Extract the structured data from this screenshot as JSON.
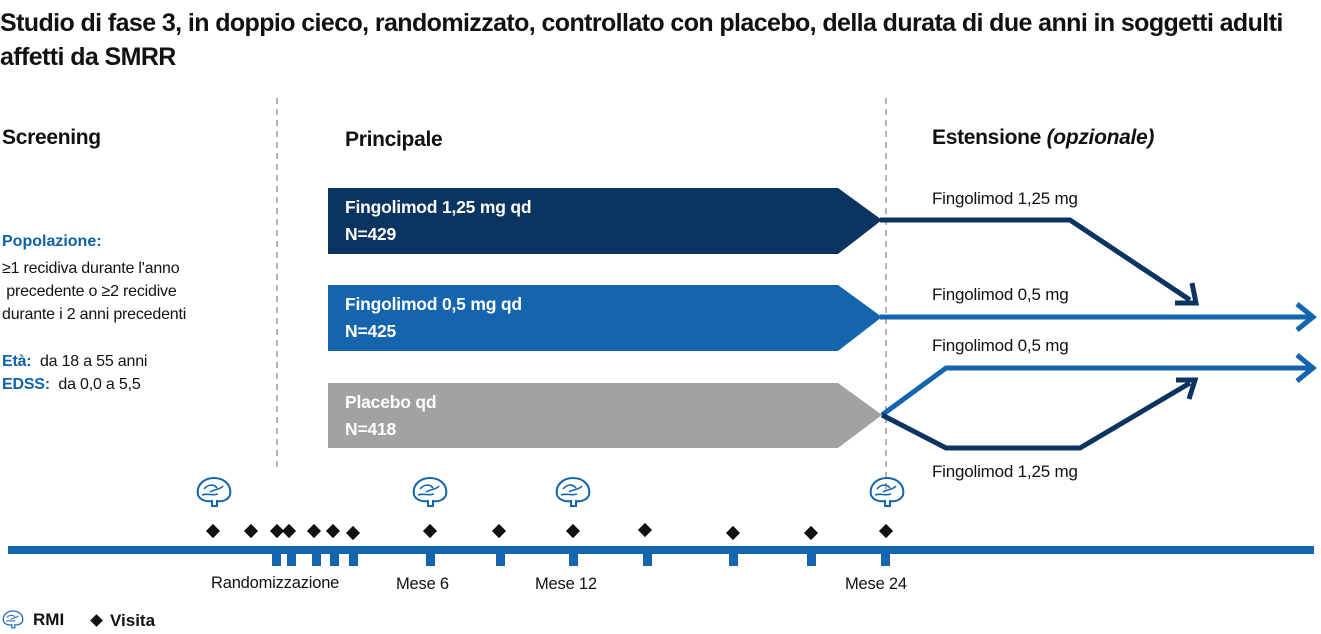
{
  "title": "Studio di fase 3, in doppio cieco, randomizzato, controllato con placebo, della durata di due anni in soggetti adulti affetti da SMRR",
  "phases": {
    "screening": "Screening",
    "core": "Principale",
    "extension": "Estensione",
    "extension_note": "(opzionale)"
  },
  "population": {
    "heading": "Popolazione:",
    "line1": "≥1 recidiva durante l'anno",
    "line2": " precedente o ≥2 recidive",
    "line3": "durante i 2 anni precedenti",
    "age_label": "Età:",
    "age_value": "da 18 a 55 anni",
    "edss_label": "EDSS:",
    "edss_value": "da 0,0 a 5,5"
  },
  "arms": [
    {
      "name": "Fingolimod 1,25 mg qd",
      "n": "N=429",
      "color": "#0b3461"
    },
    {
      "name": "Fingolimod 0,5 mg qd",
      "n": "N=425",
      "color": "#1565ae"
    },
    {
      "name": "Placebo qd",
      "n": "N=418",
      "color": "#a2a2a2"
    }
  ],
  "extension_arms": {
    "top": "Fingolimod 1,25 mg",
    "middle": "Fingolimod 0,5 mg",
    "switch_up": "Fingolimod 0,5 mg",
    "switch_down": "Fingolimod 1,25 mg"
  },
  "timeline": {
    "randomization": "Randomizzazione",
    "month6": "Mese 6",
    "month12": "Mese 12",
    "month24": "Mese 24"
  },
  "legend": {
    "mri": "RMI",
    "visit": "Visita"
  },
  "icons": {
    "mri": "brain-mri-icon",
    "visit": "diamond-visit-icon"
  },
  "colors": {
    "dark_navy": "#0b3461",
    "blue": "#1565ae",
    "grey": "#a2a2a2",
    "label_blue": "#0d62a8"
  }
}
